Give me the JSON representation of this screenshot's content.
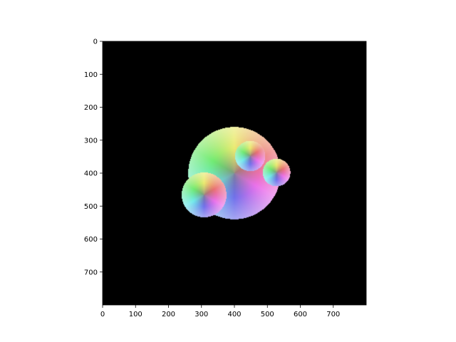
{
  "chart_data": {
    "type": "heatmap",
    "title": "",
    "xlabel": "",
    "ylabel": "",
    "image_size": [
      800,
      800
    ],
    "xlim": [
      0,
      800
    ],
    "ylim": [
      800,
      0
    ],
    "y_axis_inverted": true,
    "grid": false,
    "legend": "none",
    "xticks": [
      0,
      100,
      200,
      300,
      400,
      500,
      600,
      700
    ],
    "yticks": [
      0,
      100,
      200,
      300,
      400,
      500,
      600,
      700
    ],
    "xtick_labels": [
      "0",
      "100",
      "200",
      "300",
      "400",
      "500",
      "600",
      "700"
    ],
    "ytick_labels": [
      "0",
      "100",
      "200",
      "300",
      "400",
      "500",
      "600",
      "700"
    ],
    "background_color": "#000000",
    "colormap": "hsv hue by angle, brightening toward rim",
    "spheres": [
      {
        "name": "large",
        "cx": 400,
        "cy": 400,
        "r": 140
      },
      {
        "name": "upper-small",
        "cx": 448,
        "cy": 348,
        "r": 46
      },
      {
        "name": "right-small",
        "cx": 528,
        "cy": 398,
        "r": 42
      },
      {
        "name": "left-medium",
        "cx": 308,
        "cy": 466,
        "r": 68
      }
    ]
  }
}
